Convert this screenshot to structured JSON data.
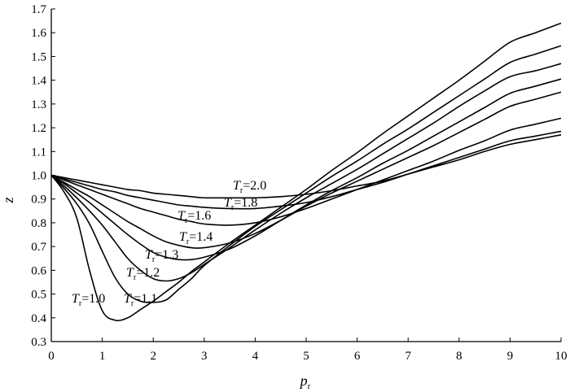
{
  "chart_data": {
    "type": "line",
    "title": "",
    "xlabel": "p",
    "xlabel_sub": "r",
    "ylabel": "z",
    "xlim": [
      0,
      10
    ],
    "ylim": [
      0.3,
      1.7
    ],
    "xticks": [
      "0",
      "1",
      "2",
      "3",
      "4",
      "5",
      "6",
      "7",
      "8",
      "9",
      "10"
    ],
    "yticks": [
      "0.3",
      "0.4",
      "0.5",
      "0.6",
      "0.7",
      "0.8",
      "0.9",
      "1.0",
      "1.1",
      "1.2",
      "1.3",
      "1.4",
      "1.5",
      "1.6",
      "1.7"
    ],
    "grid": false,
    "legend": "none",
    "x": [
      0,
      0.25,
      0.5,
      0.75,
      1.0,
      1.25,
      1.5,
      1.75,
      2.0,
      2.25,
      2.5,
      2.75,
      3.0,
      3.5,
      4.0,
      4.5,
      5.0,
      5.5,
      6.0,
      6.5,
      7.0,
      7.5,
      8.0,
      8.5,
      9.0,
      9.5,
      10.0
    ],
    "series": [
      {
        "label_var": "T",
        "label_sub": "r",
        "label_val": "=1.0",
        "values": [
          1.0,
          0.93,
          0.82,
          0.6,
          0.43,
          0.39,
          0.4,
          0.435,
          0.47,
          0.51,
          0.55,
          0.595,
          0.635,
          0.715,
          0.79,
          0.865,
          0.94,
          1.02,
          1.095,
          1.175,
          1.25,
          1.325,
          1.4,
          1.48,
          1.56,
          1.6,
          1.64
        ]
      },
      {
        "label_var": "T",
        "label_sub": "r",
        "label_val": "=1.1",
        "values": [
          1.0,
          0.945,
          0.88,
          0.795,
          0.68,
          0.57,
          0.5,
          0.47,
          0.465,
          0.475,
          0.52,
          0.565,
          0.62,
          0.705,
          0.785,
          0.855,
          0.925,
          0.995,
          1.06,
          1.13,
          1.195,
          1.265,
          1.335,
          1.405,
          1.475,
          1.51,
          1.545
        ]
      },
      {
        "label_var": "T",
        "label_sub": "r",
        "label_val": "=1.2",
        "values": [
          1.0,
          0.955,
          0.905,
          0.85,
          0.79,
          0.72,
          0.65,
          0.6,
          0.565,
          0.555,
          0.565,
          0.59,
          0.625,
          0.695,
          0.77,
          0.84,
          0.905,
          0.965,
          1.025,
          1.09,
          1.155,
          1.22,
          1.29,
          1.355,
          1.415,
          1.44,
          1.47
        ]
      },
      {
        "label_var": "T",
        "label_sub": "r",
        "label_val": "=1.3",
        "values": [
          1.0,
          0.965,
          0.925,
          0.885,
          0.84,
          0.795,
          0.75,
          0.71,
          0.675,
          0.655,
          0.645,
          0.645,
          0.655,
          0.69,
          0.745,
          0.81,
          0.875,
          0.935,
          0.99,
          1.05,
          1.105,
          1.165,
          1.225,
          1.285,
          1.345,
          1.375,
          1.405
        ]
      },
      {
        "label_var": "T",
        "label_sub": "r",
        "label_val": "=1.4",
        "values": [
          1.0,
          0.97,
          0.94,
          0.91,
          0.875,
          0.84,
          0.805,
          0.775,
          0.745,
          0.72,
          0.705,
          0.695,
          0.695,
          0.715,
          0.755,
          0.81,
          0.87,
          0.925,
          0.975,
          1.025,
          1.075,
          1.125,
          1.18,
          1.235,
          1.29,
          1.32,
          1.35
        ]
      },
      {
        "label_var": "T",
        "label_sub": "r",
        "label_val": "=1.6",
        "values": [
          1.0,
          0.98,
          0.96,
          0.94,
          0.92,
          0.9,
          0.88,
          0.86,
          0.845,
          0.83,
          0.815,
          0.805,
          0.795,
          0.79,
          0.8,
          0.825,
          0.86,
          0.9,
          0.94,
          0.98,
          1.02,
          1.06,
          1.105,
          1.145,
          1.19,
          1.215,
          1.24
        ]
      },
      {
        "label_var": "T",
        "label_sub": "r",
        "label_val": "=1.8",
        "values": [
          1.0,
          0.985,
          0.97,
          0.955,
          0.94,
          0.93,
          0.915,
          0.905,
          0.895,
          0.885,
          0.875,
          0.87,
          0.865,
          0.86,
          0.86,
          0.87,
          0.885,
          0.91,
          0.94,
          0.97,
          1.005,
          1.04,
          1.075,
          1.11,
          1.145,
          1.165,
          1.185
        ]
      },
      {
        "label_var": "T",
        "label_sub": "r",
        "label_val": "=2.0",
        "values": [
          1.0,
          0.99,
          0.98,
          0.97,
          0.96,
          0.95,
          0.94,
          0.935,
          0.925,
          0.92,
          0.915,
          0.91,
          0.905,
          0.905,
          0.905,
          0.91,
          0.92,
          0.935,
          0.955,
          0.975,
          1.005,
          1.035,
          1.065,
          1.1,
          1.13,
          1.15,
          1.17
        ]
      }
    ]
  }
}
